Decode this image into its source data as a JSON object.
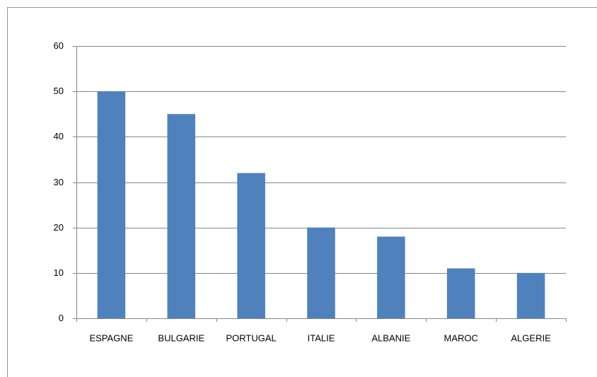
{
  "chart_data": {
    "type": "bar",
    "categories": [
      "ESPAGNE",
      "BULGARIE",
      "PORTUGAL",
      "ITALIE",
      "ALBANIE",
      "MAROC",
      "ALGERIE"
    ],
    "values": [
      50,
      45,
      32,
      20,
      18,
      11,
      10
    ],
    "color": "#4f81bd",
    "ylim": [
      0,
      60
    ],
    "yticks": [
      0,
      10,
      20,
      30,
      40,
      50,
      60
    ],
    "grid": true
  }
}
